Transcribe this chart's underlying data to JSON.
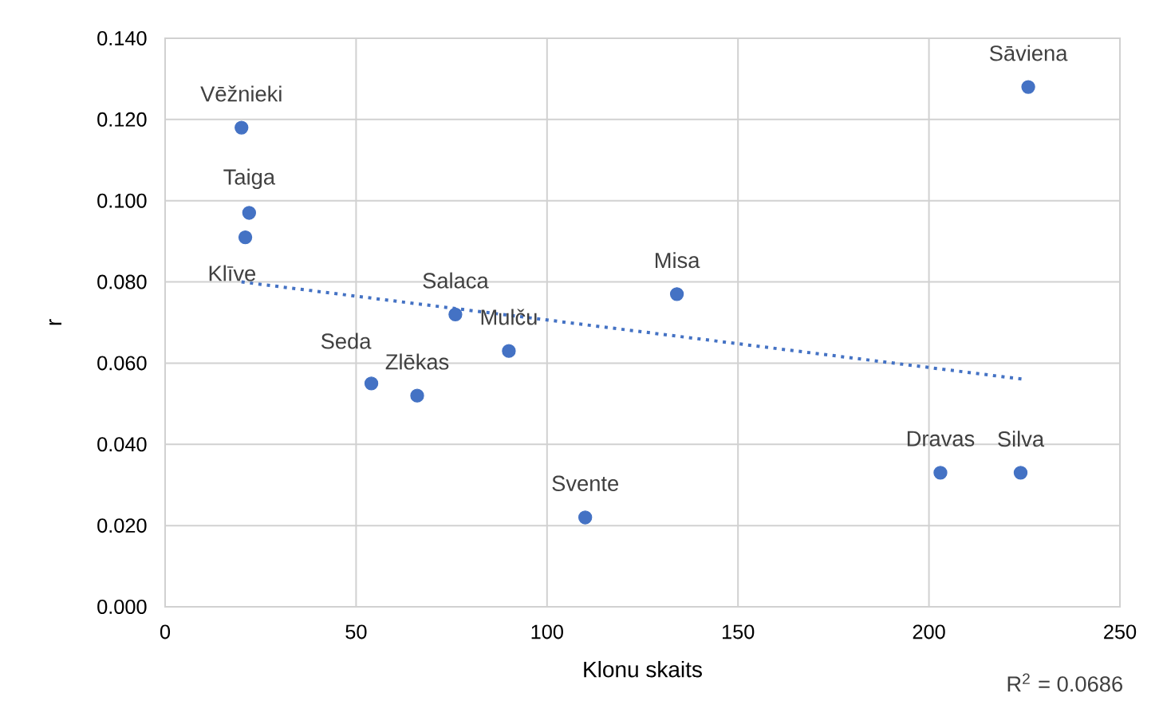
{
  "chart_data": {
    "type": "scatter",
    "xlabel": "Klonu skaits",
    "ylabel": "r",
    "xlim": [
      0,
      250
    ],
    "xticks": [
      0,
      50,
      100,
      150,
      200,
      250
    ],
    "ylim": [
      0,
      0.14
    ],
    "yticks": [
      {
        "value": 0,
        "label": "0.000"
      },
      {
        "value": 0.02,
        "label": "0.020"
      },
      {
        "value": 0.04,
        "label": "0.040"
      },
      {
        "value": 0.06,
        "label": "0.060"
      },
      {
        "value": 0.08,
        "label": "0.080"
      },
      {
        "value": 0.1,
        "label": "0.100"
      },
      {
        "value": 0.12,
        "label": "0.120"
      },
      {
        "value": 0.14,
        "label": "0.140"
      }
    ],
    "grid": true,
    "series": [
      {
        "color": "#4472c4",
        "marker": "circle",
        "x": [
          20,
          22,
          21,
          76,
          90,
          54,
          66,
          134,
          110,
          203,
          224,
          226
        ],
        "values": [
          0.118,
          0.097,
          0.091,
          0.072,
          0.063,
          0.055,
          0.052,
          0.077,
          0.022,
          0.033,
          0.033,
          0.128
        ]
      },
      {
        "type": "line",
        "color": "#4472c4",
        "line_style": "dotted",
        "marker": "none",
        "x": [
          20,
          225
        ],
        "values": [
          0.08,
          0.056
        ]
      }
    ],
    "annotations": [
      {
        "text": "Vēžnieki",
        "x": 20,
        "y": 0.118
      },
      {
        "text": "Taiga",
        "x": 22,
        "y": 0.097
      },
      {
        "text": "Klīve",
        "x": 21,
        "y": 0.091
      },
      {
        "text": "Salaca",
        "x": 76,
        "y": 0.072
      },
      {
        "text": "Mulču",
        "x": 90,
        "y": 0.063
      },
      {
        "text": "Seda",
        "x": 54,
        "y": 0.055
      },
      {
        "text": "Zlēkas",
        "x": 66,
        "y": 0.052
      },
      {
        "text": "Misa",
        "x": 134,
        "y": 0.077
      },
      {
        "text": "Svente",
        "x": 110,
        "y": 0.022
      },
      {
        "text": "Dravas",
        "x": 203,
        "y": 0.033
      },
      {
        "text": "Silva",
        "x": 224,
        "y": 0.033
      },
      {
        "text": "Sāviena",
        "x": 226,
        "y": 0.128
      },
      "R$^{2}$ = 0.0686"
    ]
  }
}
